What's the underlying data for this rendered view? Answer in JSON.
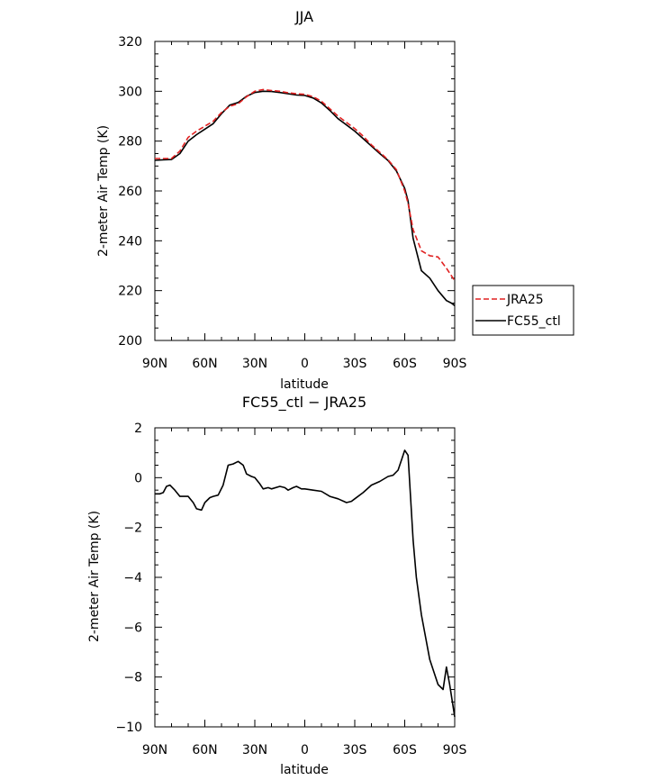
{
  "chart_data": [
    {
      "type": "line",
      "title": "JJA",
      "xlabel": "latitude",
      "ylabel": "2-meter Air Temp (K)",
      "ylim": [
        200,
        320
      ],
      "xlim": [
        90,
        -90
      ],
      "x_tick_values": [
        90,
        60,
        30,
        0,
        -30,
        -60,
        -90
      ],
      "x_tick_labels": [
        "90N",
        "60N",
        "30N",
        "0",
        "30S",
        "60S",
        "90S"
      ],
      "y_ticks": [
        200,
        220,
        240,
        260,
        280,
        300,
        320
      ],
      "legend": {
        "placement": "right"
      },
      "colors": {
        "JRA25": "#e02020",
        "FC55_ctl": "#000000"
      },
      "x": [
        90,
        85,
        80,
        75,
        70,
        65,
        60,
        55,
        50,
        45,
        40,
        35,
        30,
        25,
        20,
        15,
        10,
        5,
        0,
        -5,
        -10,
        -15,
        -20,
        -25,
        -30,
        -35,
        -40,
        -45,
        -50,
        -55,
        -60,
        -62,
        -65,
        -70,
        -75,
        -80,
        -85,
        -88,
        -90
      ],
      "series": [
        {
          "name": "JRA25",
          "style": "dashed",
          "values": [
            273,
            273,
            273,
            276,
            281.5,
            284,
            286,
            288,
            291.5,
            294,
            295,
            297.8,
            300,
            300.7,
            300.3,
            300,
            299.4,
            299,
            298.8,
            297.8,
            296,
            293,
            290,
            287.5,
            285,
            282,
            278.5,
            275.5,
            272.5,
            268.5,
            260,
            255,
            244.5,
            236,
            234,
            233.5,
            229,
            226,
            224
          ]
        },
        {
          "name": "FC55_ctl",
          "style": "solid",
          "values": [
            272.3,
            272.5,
            272.6,
            275,
            280,
            282.6,
            284.8,
            287,
            291,
            294.5,
            295.5,
            298,
            299.5,
            300,
            299.9,
            299.5,
            299,
            298.5,
            298.3,
            297.3,
            295.3,
            292.3,
            289,
            286.5,
            284,
            281,
            278,
            275,
            272.2,
            268,
            261,
            256,
            241,
            228,
            225,
            220,
            216,
            215,
            214
          ]
        }
      ]
    },
    {
      "type": "line",
      "title": "FC55_ctl − JRA25",
      "xlabel": "latitude",
      "ylabel": "2-meter Air Temp (K)",
      "ylim": [
        -10,
        2
      ],
      "xlim": [
        90,
        -90
      ],
      "x_tick_values": [
        90,
        60,
        30,
        0,
        -30,
        -60,
        -90
      ],
      "x_tick_labels": [
        "90N",
        "60N",
        "30N",
        "0",
        "30S",
        "60S",
        "90S"
      ],
      "y_ticks": [
        -10,
        -8,
        -6,
        -4,
        -2,
        0,
        2
      ],
      "colors": {
        "line": "#000000"
      },
      "x": [
        90,
        87,
        85,
        83,
        81,
        78,
        75,
        72,
        70,
        67,
        65,
        62,
        60,
        57,
        55,
        52,
        49,
        46,
        43,
        40,
        37,
        35,
        32,
        30,
        27,
        25,
        22,
        20,
        15,
        12,
        10,
        7,
        5,
        2,
        0,
        -5,
        -10,
        -15,
        -20,
        -25,
        -28,
        -30,
        -35,
        -40,
        -45,
        -50,
        -53,
        -56,
        -58,
        -60,
        -62,
        -65,
        -67,
        -70,
        -75,
        -80,
        -83,
        -85,
        -87,
        -90
      ],
      "values": [
        -0.65,
        -0.65,
        -0.6,
        -0.35,
        -0.3,
        -0.5,
        -0.75,
        -0.75,
        -0.75,
        -1.0,
        -1.25,
        -1.3,
        -1.0,
        -0.8,
        -0.75,
        -0.7,
        -0.3,
        0.5,
        0.55,
        0.65,
        0.5,
        0.15,
        0.05,
        0.0,
        -0.25,
        -0.45,
        -0.4,
        -0.45,
        -0.35,
        -0.4,
        -0.5,
        -0.4,
        -0.35,
        -0.45,
        -0.45,
        -0.5,
        -0.55,
        -0.75,
        -0.85,
        -1.0,
        -0.95,
        -0.85,
        -0.6,
        -0.3,
        -0.15,
        0.05,
        0.1,
        0.3,
        0.7,
        1.1,
        0.9,
        -2.5,
        -4.0,
        -5.5,
        -7.3,
        -8.3,
        -8.5,
        -7.6,
        -8.3,
        -9.6
      ]
    }
  ]
}
